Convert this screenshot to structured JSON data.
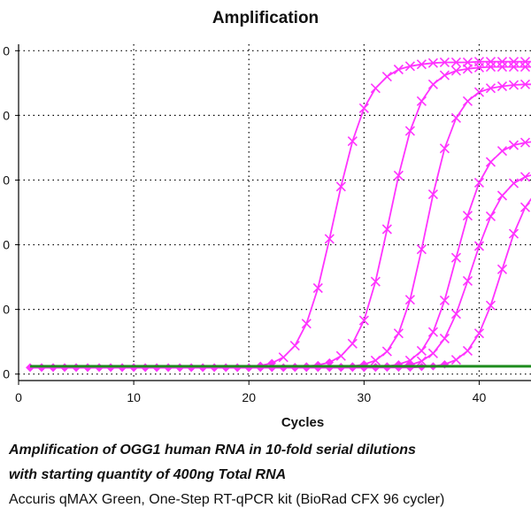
{
  "chart_data": {
    "type": "line",
    "title": "Amplification",
    "xlabel": "Cycles",
    "ylabel": "",
    "x_ticks": [
      0,
      10,
      20,
      30,
      40
    ],
    "y_ticks": [
      0,
      1,
      2,
      3,
      4,
      5
    ],
    "y_tick_labels": [
      "0",
      "0",
      "0",
      "0",
      "0",
      "0"
    ],
    "xlim": [
      0,
      44.5
    ],
    "ylim": [
      -0.1,
      5.1
    ],
    "grid": true,
    "line_color": "#ff33ff",
    "threshold_color": "#1e8c1e",
    "threshold_y": 0.12,
    "x": [
      1,
      2,
      3,
      4,
      5,
      6,
      7,
      8,
      9,
      10,
      11,
      12,
      13,
      14,
      15,
      16,
      17,
      18,
      19,
      20,
      21,
      22,
      23,
      24,
      25,
      26,
      27,
      28,
      29,
      30,
      31,
      32,
      33,
      34,
      35,
      36,
      37,
      38,
      39,
      40,
      41,
      42,
      43,
      44,
      45
    ],
    "series": [
      {
        "values": [
          0.1,
          0.1,
          0.1,
          0.1,
          0.1,
          0.1,
          0.1,
          0.1,
          0.1,
          0.1,
          0.1,
          0.1,
          0.1,
          0.1,
          0.1,
          0.1,
          0.1,
          0.1,
          0.1,
          0.1,
          0.13,
          0.17,
          0.26,
          0.44,
          0.78,
          1.33,
          2.09,
          2.9,
          3.6,
          4.11,
          4.42,
          4.6,
          4.71,
          4.76,
          4.79,
          4.81,
          4.82,
          4.82,
          4.82,
          4.83,
          4.83,
          4.83,
          4.83,
          4.83,
          4.83
        ]
      },
      {
        "values": [
          0.1,
          0.1,
          0.1,
          0.1,
          0.1,
          0.1,
          0.1,
          0.1,
          0.1,
          0.1,
          0.1,
          0.1,
          0.1,
          0.1,
          0.1,
          0.1,
          0.1,
          0.1,
          0.1,
          0.1,
          0.1,
          0.1,
          0.1,
          0.11,
          0.12,
          0.14,
          0.18,
          0.28,
          0.47,
          0.83,
          1.43,
          2.24,
          3.07,
          3.76,
          4.22,
          4.48,
          4.62,
          4.69,
          4.72,
          4.74,
          4.75,
          4.75,
          4.75,
          4.75,
          4.75
        ]
      },
      {
        "values": [
          0.1,
          0.1,
          0.1,
          0.1,
          0.1,
          0.1,
          0.1,
          0.1,
          0.1,
          0.1,
          0.1,
          0.1,
          0.1,
          0.1,
          0.1,
          0.1,
          0.1,
          0.1,
          0.1,
          0.1,
          0.1,
          0.1,
          0.1,
          0.1,
          0.1,
          0.1,
          0.1,
          0.11,
          0.12,
          0.15,
          0.21,
          0.35,
          0.63,
          1.15,
          1.93,
          2.78,
          3.49,
          3.96,
          4.22,
          4.36,
          4.42,
          4.45,
          4.47,
          4.48,
          4.48
        ]
      },
      {
        "values": [
          0.1,
          0.1,
          0.1,
          0.1,
          0.1,
          0.1,
          0.1,
          0.1,
          0.1,
          0.1,
          0.1,
          0.1,
          0.1,
          0.1,
          0.1,
          0.1,
          0.1,
          0.1,
          0.1,
          0.1,
          0.1,
          0.1,
          0.1,
          0.1,
          0.1,
          0.1,
          0.1,
          0.1,
          0.1,
          0.1,
          0.11,
          0.12,
          0.15,
          0.21,
          0.36,
          0.65,
          1.14,
          1.8,
          2.45,
          2.96,
          3.28,
          3.45,
          3.54,
          3.58,
          3.6
        ]
      },
      {
        "values": [
          0.1,
          0.1,
          0.1,
          0.1,
          0.1,
          0.1,
          0.1,
          0.1,
          0.1,
          0.1,
          0.1,
          0.1,
          0.1,
          0.1,
          0.1,
          0.1,
          0.1,
          0.1,
          0.1,
          0.1,
          0.1,
          0.1,
          0.1,
          0.1,
          0.1,
          0.1,
          0.1,
          0.1,
          0.1,
          0.1,
          0.1,
          0.11,
          0.12,
          0.14,
          0.2,
          0.32,
          0.55,
          0.93,
          1.44,
          1.98,
          2.44,
          2.76,
          2.95,
          3.05,
          3.1
        ]
      },
      {
        "values": [
          0.1,
          0.1,
          0.1,
          0.1,
          0.1,
          0.1,
          0.1,
          0.1,
          0.1,
          0.1,
          0.1,
          0.1,
          0.1,
          0.1,
          0.1,
          0.1,
          0.1,
          0.1,
          0.1,
          0.1,
          0.1,
          0.1,
          0.1,
          0.1,
          0.1,
          0.1,
          0.1,
          0.1,
          0.1,
          0.1,
          0.1,
          0.1,
          0.1,
          0.1,
          0.11,
          0.12,
          0.15,
          0.22,
          0.36,
          0.63,
          1.06,
          1.62,
          2.17,
          2.58,
          2.83
        ]
      }
    ]
  },
  "caption": {
    "line1": "Amplification of OGG1 human RNA in 10-fold serial dilutions",
    "line2": "with starting quantity of 400ng Total RNA",
    "line3": "Accuris qMAX Green, One-Step RT-qPCR kit (BioRad CFX 96 cycler)"
  }
}
